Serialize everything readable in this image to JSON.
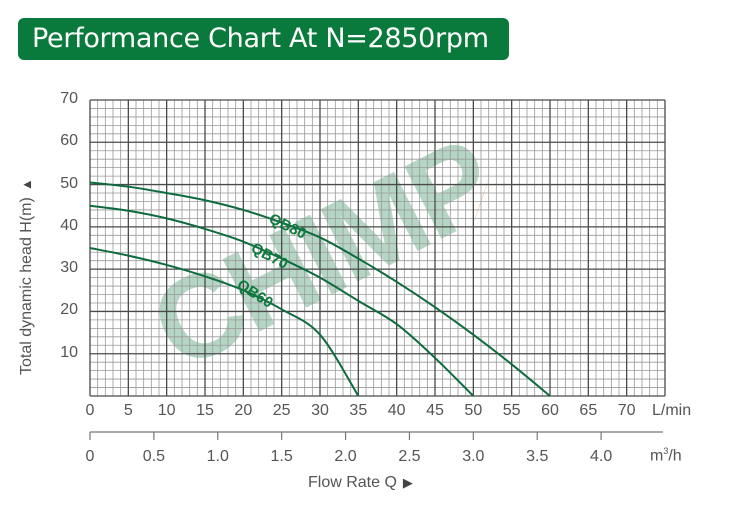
{
  "header": {
    "title": "Performance Chart At N=2850rpm",
    "title_bg_color": "#0a7a3c"
  },
  "chart_data": {
    "type": "line",
    "title": "Performance Chart At N=2850rpm",
    "xlabel": "Flow Rate Q",
    "ylabel": "Total dynamic head H(m)",
    "x_unit_primary": "L/min",
    "x_unit_secondary": "m³/h",
    "xlim": [
      0,
      75
    ],
    "ylim": [
      0,
      70
    ],
    "grid": true,
    "x_ticks_primary": [
      "0",
      "5",
      "10",
      "15",
      "20",
      "25",
      "30",
      "35",
      "40",
      "45",
      "50",
      "55",
      "60",
      "65",
      "70"
    ],
    "x_ticks_secondary": [
      "0",
      "0.5",
      "1.0",
      "1.5",
      "2.0",
      "2.5",
      "3.0",
      "3.5",
      "4.0"
    ],
    "y_ticks": [
      "10",
      "20",
      "30",
      "40",
      "50",
      "60",
      "70"
    ],
    "series": [
      {
        "name": "QB80",
        "color": "#0e6b3e",
        "x": [
          0,
          5,
          10,
          15,
          20,
          25,
          30,
          35,
          40,
          45,
          50,
          55,
          60
        ],
        "y": [
          50.5,
          49.5,
          48,
          46.3,
          44,
          41,
          37.5,
          32.5,
          27,
          21,
          14.5,
          7.5,
          0
        ]
      },
      {
        "name": "QB70",
        "color": "#0e6b3e",
        "x": [
          0,
          5,
          10,
          15,
          20,
          25,
          30,
          35,
          40,
          45,
          50
        ],
        "y": [
          45,
          43.8,
          42,
          39.5,
          36.5,
          32.5,
          28,
          22.5,
          17,
          9,
          0
        ]
      },
      {
        "name": "QB60",
        "color": "#0e6b3e",
        "x": [
          0,
          5,
          10,
          15,
          20,
          25,
          30,
          35
        ],
        "y": [
          35,
          33.2,
          31,
          28.3,
          25,
          20.5,
          14.5,
          0
        ]
      }
    ],
    "watermark": "CHIMP"
  },
  "axis": {
    "ylabel": "Total dynamic head H(m)",
    "xlabel": "Flow Rate Q",
    "x_unit_primary": "L/min",
    "x_unit_secondary_base": "m",
    "x_unit_secondary_sup": "3",
    "x_unit_secondary_tail": "/h",
    "arrow_up": "▲",
    "arrow_right": "▶"
  },
  "curve_labels": [
    "QB80",
    "QB70",
    "QB60"
  ],
  "watermark": {
    "text": "CHIMP",
    "color": "#5aa57f",
    "accent_color": "#f0a060"
  }
}
